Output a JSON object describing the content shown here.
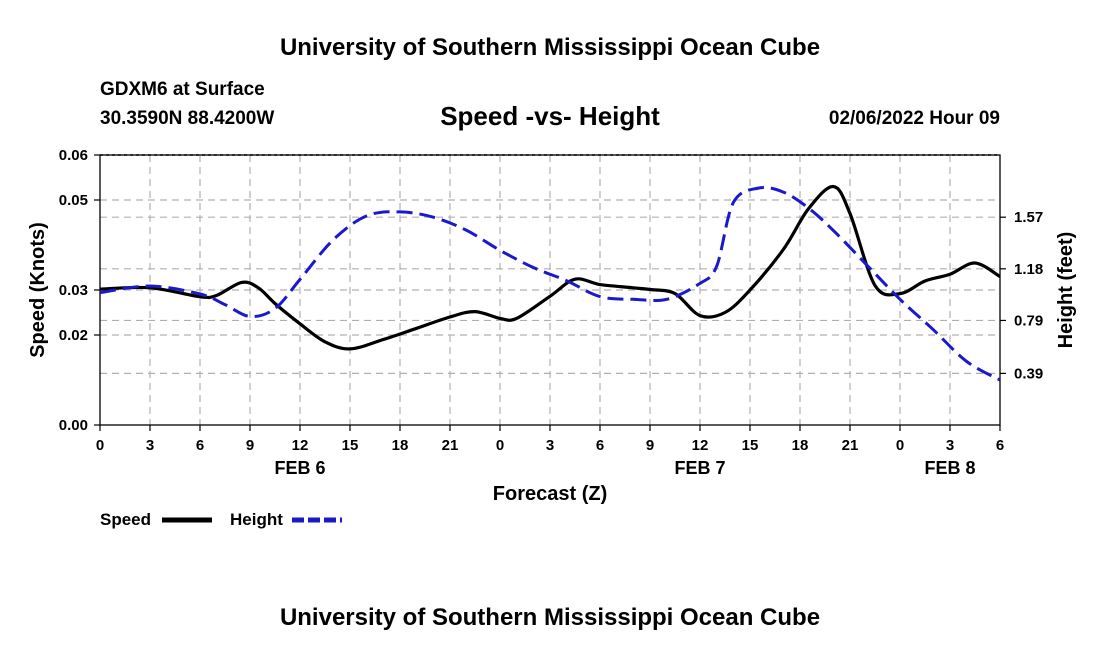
{
  "header": {
    "title": "University of Southern Mississippi Ocean Cube",
    "station": "GDXM6 at Surface",
    "coords": "30.3590N  88.4200W",
    "datetime": "02/06/2022 Hour 09"
  },
  "footer": {
    "title": "University of Southern Mississippi Ocean Cube"
  },
  "colors": {
    "speed": "#000000",
    "height": "#1a1acc",
    "grid": "#b0b0b0"
  },
  "chart_data": {
    "type": "line",
    "title": "Speed -vs- Height",
    "xlabel": "Forecast (Z)",
    "ylabel": "Speed (Knots)",
    "y2label": "Height (feet)",
    "xlim": [
      0,
      54
    ],
    "ylim": [
      0,
      0.06
    ],
    "y2lim": [
      0,
      2.04
    ],
    "x_ticks": [
      0,
      3,
      6,
      9,
      12,
      15,
      18,
      21,
      24,
      27,
      30,
      33,
      36,
      39,
      42,
      45,
      48,
      51,
      54
    ],
    "x_tick_labels": [
      "0",
      "3",
      "6",
      "9",
      "12",
      "15",
      "18",
      "21",
      "0",
      "3",
      "6",
      "9",
      "12",
      "15",
      "18",
      "21",
      "0",
      "3",
      "6"
    ],
    "y_ticks": [
      0,
      0.02,
      0.03,
      0.05,
      0.06
    ],
    "y_tick_labels": [
      "0.00",
      "0.02",
      "0.03",
      "0.05",
      "0.06"
    ],
    "y2_ticks": [
      0.39,
      0.79,
      1.18,
      1.57
    ],
    "y2_tick_labels": [
      "0.39",
      "0.79",
      "1.18",
      "1.57"
    ],
    "date_labels": [
      {
        "x": 12,
        "label": "FEB 6"
      },
      {
        "x": 36,
        "label": "FEB 7"
      },
      {
        "x": 51,
        "label": "FEB 8"
      }
    ],
    "legend": [
      {
        "name": "Speed",
        "style": "solid"
      },
      {
        "name": "Height",
        "style": "dashed"
      }
    ],
    "series": [
      {
        "name": "Speed",
        "axis": "left",
        "style": "solid",
        "x": [
          0,
          3,
          6,
          7,
          8.5,
          9.5,
          10.5,
          12,
          13.5,
          15,
          17,
          19,
          21,
          22.5,
          24,
          25,
          27,
          28.5,
          30,
          32,
          33,
          34.5,
          36,
          37.5,
          39,
          41,
          42.5,
          44,
          45,
          46.5,
          48,
          49.5,
          51,
          52.5,
          54
        ],
        "values": [
          0.0302,
          0.0305,
          0.0285,
          0.0288,
          0.0317,
          0.0305,
          0.027,
          0.0225,
          0.0185,
          0.0169,
          0.019,
          0.0215,
          0.024,
          0.0252,
          0.0237,
          0.0237,
          0.0286,
          0.0324,
          0.0312,
          0.0305,
          0.0301,
          0.0292,
          0.0243,
          0.025,
          0.03,
          0.039,
          0.048,
          0.053,
          0.047,
          0.031,
          0.0292,
          0.032,
          0.0335,
          0.036,
          0.033
        ]
      },
      {
        "name": "Height",
        "axis": "right",
        "style": "dashed",
        "x": [
          0,
          3,
          6,
          7.5,
          9,
          10.5,
          12,
          14,
          16,
          18,
          20,
          22,
          24,
          26,
          28,
          30,
          32,
          34,
          36,
          37,
          38,
          39.5,
          41,
          42.5,
          44,
          46,
          48,
          50,
          52,
          54
        ],
        "values": [
          1.0,
          1.05,
          0.99,
          0.91,
          0.82,
          0.88,
          1.1,
          1.4,
          1.58,
          1.61,
          1.57,
          1.47,
          1.32,
          1.19,
          1.09,
          0.97,
          0.95,
          0.95,
          1.07,
          1.2,
          1.68,
          1.79,
          1.76,
          1.64,
          1.47,
          1.21,
          0.95,
          0.72,
          0.48,
          0.34
        ]
      }
    ]
  }
}
